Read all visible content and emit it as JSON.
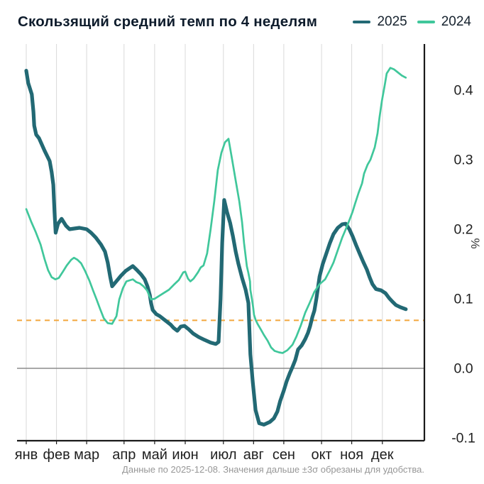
{
  "header": {
    "title": "Скользящий средний темп по 4 неделям",
    "legend": [
      {
        "label": "2025",
        "color": "#226974"
      },
      {
        "label": "2024",
        "color": "#40c79b"
      }
    ]
  },
  "caption": "Данные по 2025-12-08. Значения дальше ±3σ обрезаны для удобства.",
  "chart_data": {
    "type": "line",
    "title": "Скользящий средний темп по 4 неделям",
    "xlabel": "",
    "ylabel": "%",
    "ylim": [
      -0.104,
      0.456
    ],
    "grid": true,
    "legend_position": "top-right",
    "x_tick_labels": [
      "янв",
      "фев",
      "мар",
      "апр",
      "май",
      "июн",
      "июл",
      "авг",
      "сен",
      "окт",
      "ноя",
      "дек"
    ],
    "months": [
      {
        "label": "янв",
        "f": 0.0
      },
      {
        "label": "фев",
        "f": 0.076
      },
      {
        "label": "мар",
        "f": 0.152
      },
      {
        "label": "апр",
        "f": 0.246
      },
      {
        "label": "май",
        "f": 0.323
      },
      {
        "label": "июн",
        "f": 0.4
      },
      {
        "label": "июл",
        "f": 0.496
      },
      {
        "label": "авг",
        "f": 0.572
      },
      {
        "label": "сен",
        "f": 0.648
      },
      {
        "label": "окт",
        "f": 0.743
      },
      {
        "label": "ноя",
        "f": 0.819
      },
      {
        "label": "дек",
        "f": 0.896
      }
    ],
    "y_ticks": [
      {
        "label": "-0.1",
        "v": -0.1
      },
      {
        "label": "0.0",
        "v": 0.0
      },
      {
        "label": "0.1",
        "v": 0.1
      },
      {
        "label": "0.2",
        "v": 0.2
      },
      {
        "label": "0.3",
        "v": 0.3
      },
      {
        "label": "0.4",
        "v": 0.4
      }
    ],
    "reference_lines": [
      {
        "name": "zero-line",
        "v": 0.0,
        "color": "#8c8c8c",
        "width": 1.6,
        "dash": null
      },
      {
        "name": "threshold-line",
        "v": 0.069,
        "color": "#f3a63c",
        "width": 2,
        "dash": "7 6"
      }
    ],
    "colors": {
      "grid": "#d9d9d9",
      "axis": "#1a1a1a",
      "text": "#1f1f1f"
    },
    "series": [
      {
        "name": "2025",
        "color": "#226974",
        "width": 5.2,
        "points": [
          [
            0.0,
            0.428
          ],
          [
            0.005,
            0.41
          ],
          [
            0.014,
            0.394
          ],
          [
            0.018,
            0.369
          ],
          [
            0.02,
            0.349
          ],
          [
            0.025,
            0.336
          ],
          [
            0.032,
            0.331
          ],
          [
            0.046,
            0.313
          ],
          [
            0.059,
            0.298
          ],
          [
            0.064,
            0.282
          ],
          [
            0.068,
            0.264
          ],
          [
            0.071,
            0.225
          ],
          [
            0.074,
            0.195
          ],
          [
            0.08,
            0.208
          ],
          [
            0.089,
            0.215
          ],
          [
            0.1,
            0.205
          ],
          [
            0.109,
            0.2
          ],
          [
            0.121,
            0.201
          ],
          [
            0.134,
            0.202
          ],
          [
            0.143,
            0.201
          ],
          [
            0.152,
            0.2
          ],
          [
            0.163,
            0.195
          ],
          [
            0.175,
            0.188
          ],
          [
            0.188,
            0.178
          ],
          [
            0.198,
            0.168
          ],
          [
            0.205,
            0.152
          ],
          [
            0.211,
            0.132
          ],
          [
            0.216,
            0.118
          ],
          [
            0.225,
            0.124
          ],
          [
            0.238,
            0.133
          ],
          [
            0.25,
            0.14
          ],
          [
            0.268,
            0.147
          ],
          [
            0.279,
            0.141
          ],
          [
            0.289,
            0.135
          ],
          [
            0.298,
            0.128
          ],
          [
            0.305,
            0.118
          ],
          [
            0.311,
            0.105
          ],
          [
            0.314,
            0.094
          ],
          [
            0.318,
            0.084
          ],
          [
            0.327,
            0.078
          ],
          [
            0.336,
            0.075
          ],
          [
            0.345,
            0.071
          ],
          [
            0.354,
            0.067
          ],
          [
            0.363,
            0.063
          ],
          [
            0.371,
            0.058
          ],
          [
            0.38,
            0.054
          ],
          [
            0.389,
            0.06
          ],
          [
            0.398,
            0.061
          ],
          [
            0.409,
            0.056
          ],
          [
            0.42,
            0.05
          ],
          [
            0.434,
            0.045
          ],
          [
            0.448,
            0.041
          ],
          [
            0.464,
            0.037
          ],
          [
            0.477,
            0.035
          ],
          [
            0.484,
            0.038
          ],
          [
            0.489,
            0.1
          ],
          [
            0.493,
            0.18
          ],
          [
            0.498,
            0.242
          ],
          [
            0.505,
            0.225
          ],
          [
            0.513,
            0.209
          ],
          [
            0.52,
            0.19
          ],
          [
            0.527,
            0.168
          ],
          [
            0.534,
            0.15
          ],
          [
            0.543,
            0.13
          ],
          [
            0.552,
            0.113
          ],
          [
            0.559,
            0.094
          ],
          [
            0.564,
            0.02
          ],
          [
            0.57,
            -0.02
          ],
          [
            0.577,
            -0.06
          ],
          [
            0.586,
            -0.079
          ],
          [
            0.598,
            -0.081
          ],
          [
            0.613,
            -0.077
          ],
          [
            0.623,
            -0.072
          ],
          [
            0.632,
            -0.062
          ],
          [
            0.639,
            -0.047
          ],
          [
            0.648,
            -0.032
          ],
          [
            0.655,
            -0.019
          ],
          [
            0.663,
            -0.007
          ],
          [
            0.67,
            0.002
          ],
          [
            0.677,
            0.012
          ],
          [
            0.684,
            0.027
          ],
          [
            0.693,
            0.033
          ],
          [
            0.702,
            0.042
          ],
          [
            0.709,
            0.051
          ],
          [
            0.714,
            0.06
          ],
          [
            0.72,
            0.074
          ],
          [
            0.725,
            0.083
          ],
          [
            0.73,
            0.1
          ],
          [
            0.738,
            0.132
          ],
          [
            0.746,
            0.15
          ],
          [
            0.755,
            0.165
          ],
          [
            0.764,
            0.18
          ],
          [
            0.773,
            0.193
          ],
          [
            0.784,
            0.202
          ],
          [
            0.795,
            0.207
          ],
          [
            0.804,
            0.208
          ],
          [
            0.813,
            0.2
          ],
          [
            0.821,
            0.19
          ],
          [
            0.83,
            0.177
          ],
          [
            0.839,
            0.165
          ],
          [
            0.848,
            0.153
          ],
          [
            0.857,
            0.142
          ],
          [
            0.864,
            0.131
          ],
          [
            0.871,
            0.121
          ],
          [
            0.88,
            0.114
          ],
          [
            0.893,
            0.112
          ],
          [
            0.904,
            0.108
          ],
          [
            0.913,
            0.101
          ],
          [
            0.921,
            0.096
          ],
          [
            0.93,
            0.091
          ],
          [
            0.941,
            0.088
          ],
          [
            0.955,
            0.085
          ]
        ]
      },
      {
        "name": "2024",
        "color": "#40c79b",
        "width": 2.7,
        "points": [
          [
            0.0,
            0.229
          ],
          [
            0.013,
            0.21
          ],
          [
            0.023,
            0.197
          ],
          [
            0.036,
            0.178
          ],
          [
            0.046,
            0.157
          ],
          [
            0.055,
            0.141
          ],
          [
            0.064,
            0.131
          ],
          [
            0.073,
            0.128
          ],
          [
            0.082,
            0.13
          ],
          [
            0.091,
            0.138
          ],
          [
            0.102,
            0.148
          ],
          [
            0.113,
            0.156
          ],
          [
            0.12,
            0.159
          ],
          [
            0.129,
            0.156
          ],
          [
            0.138,
            0.151
          ],
          [
            0.148,
            0.14
          ],
          [
            0.159,
            0.126
          ],
          [
            0.168,
            0.112
          ],
          [
            0.177,
            0.099
          ],
          [
            0.186,
            0.085
          ],
          [
            0.195,
            0.072
          ],
          [
            0.205,
            0.065
          ],
          [
            0.216,
            0.064
          ],
          [
            0.227,
            0.075
          ],
          [
            0.234,
            0.099
          ],
          [
            0.243,
            0.115
          ],
          [
            0.252,
            0.125
          ],
          [
            0.268,
            0.128
          ],
          [
            0.277,
            0.124
          ],
          [
            0.286,
            0.122
          ],
          [
            0.295,
            0.118
          ],
          [
            0.304,
            0.112
          ],
          [
            0.314,
            0.099
          ],
          [
            0.323,
            0.1
          ],
          [
            0.334,
            0.104
          ],
          [
            0.345,
            0.108
          ],
          [
            0.359,
            0.113
          ],
          [
            0.371,
            0.12
          ],
          [
            0.384,
            0.127
          ],
          [
            0.395,
            0.138
          ],
          [
            0.4,
            0.139
          ],
          [
            0.407,
            0.129
          ],
          [
            0.413,
            0.125
          ],
          [
            0.421,
            0.129
          ],
          [
            0.432,
            0.138
          ],
          [
            0.439,
            0.145
          ],
          [
            0.446,
            0.148
          ],
          [
            0.455,
            0.165
          ],
          [
            0.464,
            0.2
          ],
          [
            0.473,
            0.24
          ],
          [
            0.482,
            0.285
          ],
          [
            0.491,
            0.31
          ],
          [
            0.5,
            0.325
          ],
          [
            0.509,
            0.33
          ],
          [
            0.518,
            0.3
          ],
          [
            0.527,
            0.27
          ],
          [
            0.536,
            0.24
          ],
          [
            0.543,
            0.21
          ],
          [
            0.548,
            0.18
          ],
          [
            0.555,
            0.147
          ],
          [
            0.559,
            0.137
          ],
          [
            0.563,
            0.125
          ],
          [
            0.564,
            0.113
          ],
          [
            0.568,
            0.099
          ],
          [
            0.571,
            0.087
          ],
          [
            0.573,
            0.077
          ],
          [
            0.577,
            0.07
          ],
          [
            0.582,
            0.064
          ],
          [
            0.591,
            0.055
          ],
          [
            0.598,
            0.048
          ],
          [
            0.607,
            0.04
          ],
          [
            0.616,
            0.03
          ],
          [
            0.625,
            0.025
          ],
          [
            0.636,
            0.023
          ],
          [
            0.645,
            0.022
          ],
          [
            0.657,
            0.026
          ],
          [
            0.67,
            0.034
          ],
          [
            0.68,
            0.046
          ],
          [
            0.691,
            0.062
          ],
          [
            0.702,
            0.08
          ],
          [
            0.713,
            0.094
          ],
          [
            0.725,
            0.11
          ],
          [
            0.738,
            0.121
          ],
          [
            0.752,
            0.128
          ],
          [
            0.763,
            0.14
          ],
          [
            0.773,
            0.152
          ],
          [
            0.784,
            0.17
          ],
          [
            0.795,
            0.188
          ],
          [
            0.804,
            0.2
          ],
          [
            0.813,
            0.213
          ],
          [
            0.821,
            0.225
          ],
          [
            0.827,
            0.236
          ],
          [
            0.836,
            0.252
          ],
          [
            0.845,
            0.266
          ],
          [
            0.85,
            0.28
          ],
          [
            0.859,
            0.293
          ],
          [
            0.866,
            0.3
          ],
          [
            0.877,
            0.318
          ],
          [
            0.884,
            0.338
          ],
          [
            0.889,
            0.361
          ],
          [
            0.895,
            0.385
          ],
          [
            0.902,
            0.407
          ],
          [
            0.907,
            0.424
          ],
          [
            0.916,
            0.432
          ],
          [
            0.925,
            0.43
          ],
          [
            0.934,
            0.426
          ],
          [
            0.945,
            0.421
          ],
          [
            0.955,
            0.418
          ]
        ]
      }
    ]
  }
}
